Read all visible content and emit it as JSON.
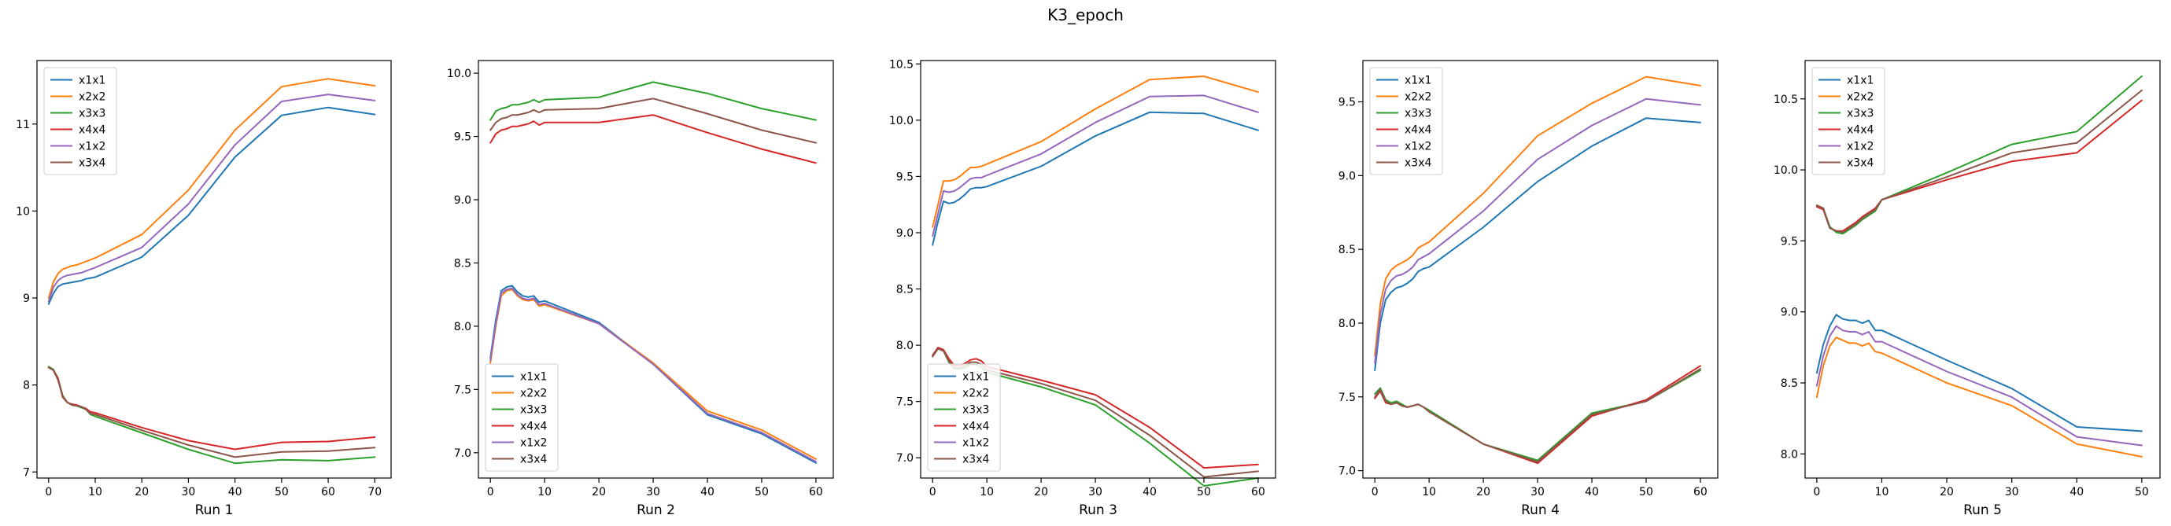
{
  "figure": {
    "title": "K3_epoch"
  },
  "colors": {
    "x1x1": "#1f77b4",
    "x2x2": "#ff7f0e",
    "x3x3": "#2ca02c",
    "x4x4": "#d62728",
    "x1x2": "#9467bd",
    "x3x4": "#8c564b"
  },
  "chart_data": [
    {
      "type": "line",
      "xlabel": "Run 1",
      "xlim": [
        -2.5,
        73.5
      ],
      "ylim": [
        6.93,
        11.73
      ],
      "xticks": [
        0,
        10,
        20,
        30,
        40,
        50,
        60,
        70
      ],
      "yticks": [
        7,
        8,
        9,
        10,
        11
      ],
      "legend": "upper-left",
      "x": [
        0,
        1,
        2,
        3,
        4,
        5,
        6,
        7,
        8,
        9,
        10,
        20,
        30,
        40,
        50,
        60,
        70
      ],
      "series": [
        {
          "name": "x1x1",
          "values": [
            8.93,
            9.05,
            9.13,
            9.16,
            9.17,
            9.18,
            9.19,
            9.2,
            9.22,
            9.23,
            9.24,
            9.47,
            9.95,
            10.62,
            11.1,
            11.19,
            11.11
          ]
        },
        {
          "name": "x2x2",
          "values": [
            9.0,
            9.18,
            9.28,
            9.33,
            9.35,
            9.37,
            9.38,
            9.4,
            9.42,
            9.44,
            9.46,
            9.73,
            10.24,
            10.93,
            11.43,
            11.52,
            11.44
          ]
        },
        {
          "name": "x3x3",
          "values": [
            8.21,
            8.18,
            8.08,
            7.88,
            7.8,
            7.77,
            7.76,
            7.74,
            7.72,
            7.66,
            7.64,
            7.45,
            7.26,
            7.1,
            7.14,
            7.13,
            7.17
          ]
        },
        {
          "name": "x4x4",
          "values": [
            8.2,
            8.17,
            8.08,
            7.86,
            7.8,
            7.78,
            7.77,
            7.75,
            7.73,
            7.69,
            7.68,
            7.51,
            7.36,
            7.26,
            7.34,
            7.35,
            7.4
          ]
        },
        {
          "name": "x1x2",
          "values": [
            8.96,
            9.12,
            9.2,
            9.24,
            9.26,
            9.27,
            9.28,
            9.29,
            9.31,
            9.33,
            9.35,
            9.58,
            10.08,
            10.76,
            11.26,
            11.34,
            11.27
          ]
        },
        {
          "name": "x3x4",
          "values": [
            8.2,
            8.17,
            8.06,
            7.87,
            7.8,
            7.77,
            7.76,
            7.75,
            7.72,
            7.67,
            7.66,
            7.48,
            7.31,
            7.17,
            7.23,
            7.24,
            7.28
          ]
        }
      ]
    },
    {
      "type": "line",
      "xlabel": "Run 2",
      "xlim": [
        -2.2,
        63.2
      ],
      "ylim": [
        6.8,
        10.1
      ],
      "xticks": [
        0,
        10,
        20,
        30,
        40,
        50,
        60
      ],
      "yticks": [
        7.0,
        7.5,
        8.0,
        8.5,
        9.0,
        9.5,
        10.0
      ],
      "legend": "lower-left",
      "x": [
        0,
        1,
        2,
        3,
        4,
        5,
        6,
        7,
        8,
        9,
        10,
        20,
        30,
        40,
        50,
        60
      ],
      "series": [
        {
          "name": "x1x1",
          "values": [
            7.75,
            8.05,
            8.28,
            8.31,
            8.32,
            8.27,
            8.24,
            8.23,
            8.24,
            8.19,
            8.2,
            8.03,
            7.7,
            7.3,
            7.15,
            6.92
          ]
        },
        {
          "name": "x2x2",
          "values": [
            7.71,
            8.0,
            8.24,
            8.28,
            8.29,
            8.24,
            8.21,
            8.2,
            8.21,
            8.16,
            8.17,
            8.02,
            7.71,
            7.33,
            7.18,
            6.95
          ]
        },
        {
          "name": "x3x3",
          "values": [
            9.63,
            9.7,
            9.72,
            9.73,
            9.75,
            9.75,
            9.76,
            9.77,
            9.79,
            9.77,
            9.79,
            9.81,
            9.93,
            9.84,
            9.72,
            9.63
          ]
        },
        {
          "name": "x4x4",
          "values": [
            9.45,
            9.52,
            9.55,
            9.56,
            9.58,
            9.58,
            9.59,
            9.6,
            9.62,
            9.59,
            9.61,
            9.61,
            9.67,
            9.53,
            9.4,
            9.29
          ]
        },
        {
          "name": "x1x2",
          "values": [
            7.73,
            8.02,
            8.26,
            8.29,
            8.3,
            8.25,
            8.22,
            8.21,
            8.22,
            8.17,
            8.18,
            8.02,
            7.7,
            7.31,
            7.16,
            6.93
          ]
        },
        {
          "name": "x3x4",
          "values": [
            9.55,
            9.61,
            9.64,
            9.65,
            9.67,
            9.67,
            9.68,
            9.69,
            9.71,
            9.69,
            9.71,
            9.72,
            9.8,
            9.68,
            9.55,
            9.45
          ]
        }
      ]
    },
    {
      "type": "line",
      "xlabel": "Run 3",
      "xlim": [
        -2.2,
        63.2
      ],
      "ylim": [
        6.82,
        10.53
      ],
      "xticks": [
        0,
        10,
        20,
        30,
        40,
        50,
        60
      ],
      "yticks": [
        7.0,
        7.5,
        8.0,
        8.5,
        9.0,
        9.5,
        10.0,
        10.5
      ],
      "legend": "lower-left",
      "x": [
        0,
        1,
        2,
        3,
        4,
        5,
        6,
        7,
        8,
        9,
        10,
        20,
        30,
        40,
        50,
        60
      ],
      "series": [
        {
          "name": "x1x1",
          "values": [
            8.89,
            9.1,
            9.28,
            9.26,
            9.27,
            9.3,
            9.34,
            9.39,
            9.4,
            9.4,
            9.41,
            9.59,
            9.86,
            10.07,
            10.06,
            9.91
          ]
        },
        {
          "name": "x2x2",
          "values": [
            9.05,
            9.25,
            9.46,
            9.46,
            9.47,
            9.5,
            9.54,
            9.58,
            9.58,
            9.59,
            9.61,
            9.81,
            10.1,
            10.36,
            10.39,
            10.25
          ]
        },
        {
          "name": "x3x3",
          "values": [
            7.9,
            7.97,
            7.95,
            7.85,
            7.79,
            7.79,
            7.8,
            7.83,
            7.83,
            7.8,
            7.76,
            7.63,
            7.47,
            7.13,
            6.75,
            6.82
          ]
        },
        {
          "name": "x4x4",
          "values": [
            7.91,
            7.98,
            7.96,
            7.88,
            7.82,
            7.82,
            7.84,
            7.87,
            7.88,
            7.86,
            7.81,
            7.69,
            7.56,
            7.27,
            6.91,
            6.94
          ]
        },
        {
          "name": "x1x2",
          "values": [
            8.97,
            9.17,
            9.37,
            9.36,
            9.37,
            9.4,
            9.44,
            9.48,
            9.49,
            9.49,
            9.51,
            9.7,
            9.98,
            10.21,
            10.22,
            10.07
          ]
        },
        {
          "name": "x3x4",
          "values": [
            7.9,
            7.97,
            7.95,
            7.86,
            7.8,
            7.8,
            7.82,
            7.85,
            7.85,
            7.83,
            7.78,
            7.66,
            7.51,
            7.2,
            6.83,
            6.88
          ]
        }
      ]
    },
    {
      "type": "line",
      "xlabel": "Run 4",
      "xlim": [
        -2.2,
        63.2
      ],
      "ylim": [
        6.95,
        9.78
      ],
      "xticks": [
        0,
        10,
        20,
        30,
        40,
        50,
        60
      ],
      "yticks": [
        7.0,
        7.5,
        8.0,
        8.5,
        9.0,
        9.5
      ],
      "legend": "upper-left",
      "x": [
        0,
        1,
        2,
        3,
        4,
        5,
        6,
        7,
        8,
        9,
        10,
        20,
        30,
        40,
        50,
        60
      ],
      "series": [
        {
          "name": "x1x1",
          "values": [
            7.68,
            8.0,
            8.16,
            8.21,
            8.24,
            8.25,
            8.27,
            8.3,
            8.35,
            8.37,
            8.38,
            8.65,
            8.96,
            9.2,
            9.39,
            9.36
          ]
        },
        {
          "name": "x2x2",
          "values": [
            7.78,
            8.13,
            8.3,
            8.36,
            8.39,
            8.41,
            8.43,
            8.46,
            8.51,
            8.53,
            8.55,
            8.88,
            9.27,
            9.49,
            9.67,
            9.61
          ]
        },
        {
          "name": "x3x3",
          "values": [
            7.52,
            7.56,
            7.48,
            7.46,
            7.47,
            7.45,
            7.43,
            7.44,
            7.45,
            7.43,
            7.41,
            7.18,
            7.07,
            7.39,
            7.47,
            7.68
          ]
        },
        {
          "name": "x4x4",
          "values": [
            7.49,
            7.54,
            7.46,
            7.45,
            7.46,
            7.44,
            7.43,
            7.44,
            7.45,
            7.43,
            7.4,
            7.18,
            7.05,
            7.37,
            7.48,
            7.71
          ]
        },
        {
          "name": "x1x2",
          "values": [
            7.73,
            8.06,
            8.23,
            8.29,
            8.32,
            8.33,
            8.35,
            8.38,
            8.43,
            8.45,
            8.47,
            8.76,
            9.11,
            9.34,
            9.52,
            9.48
          ]
        },
        {
          "name": "x3x4",
          "values": [
            7.5,
            7.55,
            7.47,
            7.45,
            7.46,
            7.44,
            7.43,
            7.44,
            7.45,
            7.43,
            7.4,
            7.18,
            7.06,
            7.38,
            7.47,
            7.69
          ]
        }
      ]
    },
    {
      "type": "line",
      "xlabel": "Run 5",
      "xlim": [
        -1.8,
        52.8
      ],
      "ylim": [
        7.83,
        10.77
      ],
      "xticks": [
        0,
        10,
        20,
        30,
        40,
        50
      ],
      "yticks": [
        8.0,
        8.5,
        9.0,
        9.5,
        10.0,
        10.5
      ],
      "legend": "upper-left",
      "x": [
        0,
        1,
        2,
        3,
        4,
        5,
        6,
        7,
        8,
        9,
        10,
        20,
        30,
        40,
        50
      ],
      "series": [
        {
          "name": "x1x1",
          "values": [
            8.57,
            8.77,
            8.9,
            8.98,
            8.95,
            8.94,
            8.94,
            8.92,
            8.94,
            8.87,
            8.87,
            8.66,
            8.46,
            8.19,
            8.16
          ]
        },
        {
          "name": "x2x2",
          "values": [
            8.4,
            8.62,
            8.76,
            8.82,
            8.8,
            8.78,
            8.78,
            8.76,
            8.78,
            8.72,
            8.71,
            8.5,
            8.34,
            8.07,
            7.98
          ]
        },
        {
          "name": "x3x3",
          "values": [
            9.75,
            9.73,
            9.6,
            9.56,
            9.55,
            9.58,
            9.61,
            9.65,
            9.68,
            9.71,
            9.79,
            9.98,
            10.18,
            10.27,
            10.66
          ]
        },
        {
          "name": "x4x4",
          "values": [
            9.74,
            9.72,
            9.59,
            9.57,
            9.57,
            9.6,
            9.63,
            9.67,
            9.7,
            9.73,
            9.79,
            9.93,
            10.06,
            10.12,
            10.49
          ]
        },
        {
          "name": "x1x2",
          "values": [
            8.48,
            8.69,
            8.83,
            8.9,
            8.87,
            8.86,
            8.86,
            8.84,
            8.86,
            8.79,
            8.79,
            8.58,
            8.4,
            8.12,
            8.06
          ]
        },
        {
          "name": "x3x4",
          "values": [
            9.75,
            9.73,
            9.59,
            9.57,
            9.56,
            9.59,
            9.62,
            9.66,
            9.69,
            9.72,
            9.79,
            9.95,
            10.12,
            10.19,
            10.56
          ]
        }
      ]
    }
  ]
}
